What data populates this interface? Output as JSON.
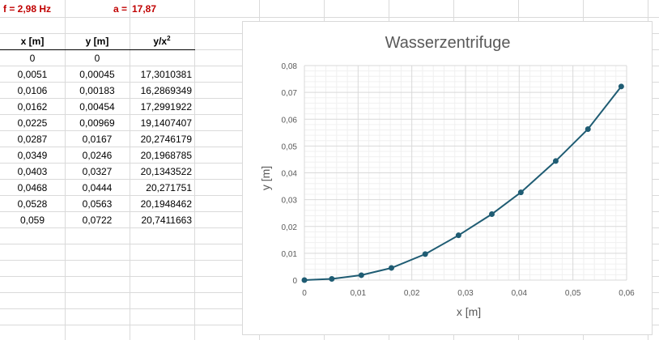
{
  "sheet": {
    "freq_label": "f = 2,98 Hz",
    "a_label": "a =",
    "a_value": "17,87",
    "headers": [
      "x [m]",
      "y [m]",
      "y/x"
    ],
    "header_sup": "2",
    "rows": [
      [
        "0",
        "0",
        ""
      ],
      [
        "0,0051",
        "0,00045",
        "17,3010381"
      ],
      [
        "0,0106",
        "0,00183",
        "16,2869349"
      ],
      [
        "0,0162",
        "0,00454",
        "17,2991922"
      ],
      [
        "0,0225",
        "0,00969",
        "19,1407407"
      ],
      [
        "0,0287",
        "0,0167",
        "20,2746179"
      ],
      [
        "0,0349",
        "0,0246",
        "20,1968785"
      ],
      [
        "0,0403",
        "0,0327",
        "20,1343522"
      ],
      [
        "0,0468",
        "0,0444",
        "20,271751"
      ],
      [
        "0,0528",
        "0,0563",
        "20,1948462"
      ],
      [
        "0,059",
        "0,0722",
        "20,7411663"
      ]
    ]
  },
  "chart_data": {
    "type": "scatter",
    "title": "Wasserzentrifuge",
    "xlabel": "x [m]",
    "ylabel": "y [m]",
    "xlim": [
      0,
      0.06
    ],
    "ylim": [
      0,
      0.08
    ],
    "x_ticks": [
      "0",
      "0,01",
      "0,02",
      "0,03",
      "0,04",
      "0,05",
      "0,06"
    ],
    "y_ticks": [
      "0",
      "0,01",
      "0,02",
      "0,03",
      "0,04",
      "0,05",
      "0,06",
      "0,07",
      "0,08"
    ],
    "grid": true,
    "series": [
      {
        "x": [
          0,
          0.0051,
          0.0106,
          0.0162,
          0.0225,
          0.0287,
          0.0349,
          0.0403,
          0.0468,
          0.0528,
          0.059
        ],
        "y": [
          0,
          0.00045,
          0.00183,
          0.00454,
          0.00969,
          0.0167,
          0.0246,
          0.0327,
          0.0444,
          0.0563,
          0.0722
        ],
        "color": "#1f5c73"
      }
    ]
  }
}
